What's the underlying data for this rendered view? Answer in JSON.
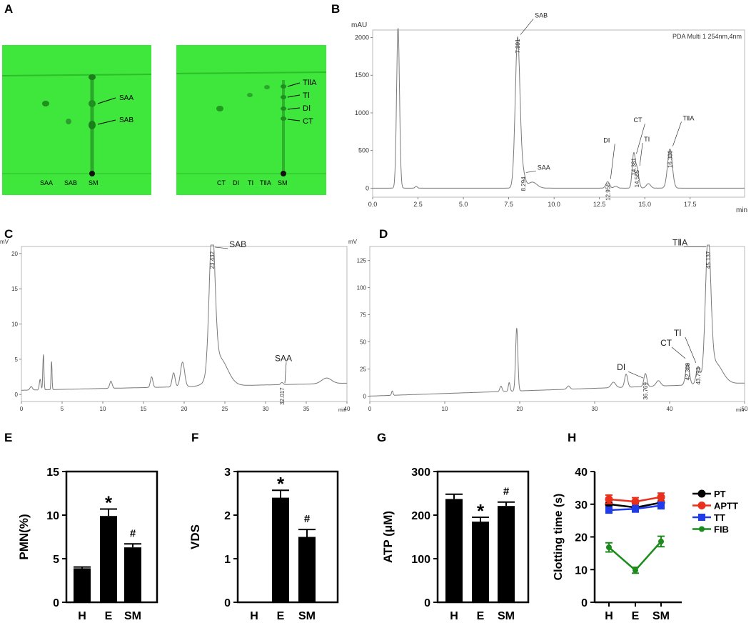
{
  "panels": {
    "A": {
      "label": "A",
      "plate_left": {
        "spots_labels": [
          "SAA",
          "SAB"
        ],
        "lane_labels": [
          "SAA",
          "SAB",
          "SM"
        ]
      },
      "plate_right": {
        "spots_labels": [
          "TⅡA",
          "TⅠ",
          "DⅠ",
          "CT"
        ],
        "lane_labels": [
          "CT",
          "DⅠ",
          "TⅠ",
          "TⅡA",
          "SM"
        ]
      },
      "plate_color": "#3ee83a"
    },
    "B": {
      "label": "B"
    },
    "C": {
      "label": "C"
    },
    "D": {
      "label": "D"
    },
    "E": {
      "label": "E"
    },
    "F": {
      "label": "F"
    },
    "G": {
      "label": "G"
    },
    "H": {
      "label": "H"
    }
  },
  "chart_data": [
    {
      "id": "B",
      "type": "line",
      "ylabel": "mAU",
      "xlabel": "min",
      "header": "PDA Multi 1 254nm,4nm",
      "xlim": [
        0,
        20.5
      ],
      "ylim": [
        -120,
        2100
      ],
      "xticks": [
        0.0,
        2.5,
        5.0,
        7.5,
        10.0,
        12.5,
        15.0,
        17.5
      ],
      "xtick_labels": [
        "0.0",
        "2.5",
        "5.0",
        "7.5",
        "10.0",
        "12.5",
        "15.0",
        "17.5"
      ],
      "yticks": [
        0,
        500,
        1000,
        1500,
        2000
      ],
      "peaks": [
        {
          "x": 1.4,
          "h": 2150,
          "w": 0.08
        },
        {
          "x": 2.4,
          "h": 25,
          "w": 0.06
        },
        {
          "x": 7.991,
          "h": 2000,
          "w": 0.13
        },
        {
          "x": 8.294,
          "h": 170,
          "w": 0.12
        },
        {
          "x": 8.8,
          "h": 80,
          "w": 0.25
        },
        {
          "x": 12.956,
          "h": 85,
          "w": 0.1
        },
        {
          "x": 13.4,
          "h": 25,
          "w": 0.1
        },
        {
          "x": 14.381,
          "h": 420,
          "w": 0.08
        },
        {
          "x": 14.565,
          "h": 260,
          "w": 0.1
        },
        {
          "x": 15.2,
          "h": 60,
          "w": 0.12
        },
        {
          "x": 16.386,
          "h": 520,
          "w": 0.13
        }
      ],
      "peak_labels": [
        {
          "rt": "7.991",
          "name": "SAB",
          "x": 7.991,
          "y": 2000
        },
        {
          "rt": "8.294",
          "name": "SAA",
          "x": 8.294,
          "y": 170
        },
        {
          "rt": "12.956",
          "name": "DⅠ",
          "x": 12.956,
          "y": 85
        },
        {
          "rt": "14.381",
          "name": "CT",
          "x": 14.381,
          "y": 420
        },
        {
          "rt": "14.565",
          "name": "TⅠ",
          "x": 14.565,
          "y": 260
        },
        {
          "rt": "16.386",
          "name": "TⅡA",
          "x": 16.386,
          "y": 520
        }
      ]
    },
    {
      "id": "C",
      "type": "line",
      "ylabel": "mV",
      "xlabel": "min",
      "xlim": [
        0,
        40
      ],
      "ylim": [
        -1,
        21
      ],
      "xticks": [
        0,
        5,
        10,
        15,
        20,
        25,
        30,
        35,
        40
      ],
      "yticks": [
        0,
        5,
        10,
        15,
        20
      ],
      "baseline_from": 0.6,
      "baseline_to": 1.6,
      "peaks": [
        {
          "x": 1.2,
          "h": 0.5,
          "w": 0.15
        },
        {
          "x": 2.3,
          "h": 1.5,
          "w": 0.1
        },
        {
          "x": 2.7,
          "h": 5.0,
          "w": 0.07
        },
        {
          "x": 3.7,
          "h": 4.0,
          "w": 0.06
        },
        {
          "x": 11.0,
          "h": 1.0,
          "w": 0.15
        },
        {
          "x": 16.0,
          "h": 1.5,
          "w": 0.15
        },
        {
          "x": 18.7,
          "h": 2.0,
          "w": 0.18
        },
        {
          "x": 19.8,
          "h": 3.5,
          "w": 0.25
        },
        {
          "x": 23.432,
          "h": 20.0,
          "w": 0.35
        },
        {
          "x": 24.3,
          "h": 4.0,
          "w": 1.0
        },
        {
          "x": 32.017,
          "h": 0.3,
          "w": 0.15
        },
        {
          "x": 37.5,
          "h": 0.8,
          "w": 0.6
        }
      ],
      "peak_labels": [
        {
          "rt": "23.432",
          "name": "SAB",
          "x": 23.432,
          "y": 20.5
        },
        {
          "rt": "32.017",
          "name": "SAA",
          "x": 32.017,
          "y": 1.2
        }
      ]
    },
    {
      "id": "D",
      "type": "line",
      "ylabel": "mV",
      "xlabel": "min",
      "xlim": [
        0,
        50
      ],
      "ylim": [
        -5,
        138
      ],
      "xticks": [
        0,
        10,
        20,
        30,
        40,
        50
      ],
      "yticks": [
        0,
        25,
        50,
        75,
        100,
        125
      ],
      "baseline_from": 0,
      "baseline_to": 12,
      "peaks": [
        {
          "x": 3.0,
          "h": 4,
          "w": 0.1
        },
        {
          "x": 17.5,
          "h": 5,
          "w": 0.15
        },
        {
          "x": 18.6,
          "h": 8,
          "w": 0.12
        },
        {
          "x": 19.6,
          "h": 58,
          "w": 0.15
        },
        {
          "x": 26.5,
          "h": 3,
          "w": 0.2
        },
        {
          "x": 32.5,
          "h": 5,
          "w": 0.3
        },
        {
          "x": 34.2,
          "h": 12,
          "w": 0.2
        },
        {
          "x": 36.769,
          "h": 12,
          "w": 0.2
        },
        {
          "x": 38.5,
          "h": 5,
          "w": 0.3
        },
        {
          "x": 42.388,
          "h": 20,
          "w": 0.25
        },
        {
          "x": 43.793,
          "h": 15,
          "w": 0.25
        },
        {
          "x": 45.137,
          "h": 125,
          "w": 0.35
        },
        {
          "x": 46.0,
          "h": 20,
          "w": 1.0
        }
      ],
      "peak_labels": [
        {
          "rt": "36.769",
          "name": "DⅠ",
          "x": 36.769,
          "y": 14
        },
        {
          "rt": "42.388",
          "name": "CT",
          "x": 42.388,
          "y": 32
        },
        {
          "rt": "43.793",
          "name": "TⅠ",
          "x": 43.793,
          "y": 28
        },
        {
          "rt": "45.137",
          "name": "TⅡA",
          "x": 45.137,
          "y": 135
        }
      ]
    },
    {
      "id": "E",
      "type": "bar",
      "ylabel": "PMN(%)",
      "categories": [
        "H",
        "E",
        "SM"
      ],
      "values": [
        3.9,
        9.9,
        6.3
      ],
      "errors": [
        0.15,
        0.8,
        0.4
      ],
      "marks": [
        "",
        "*",
        "#"
      ],
      "ylim": [
        0,
        15
      ],
      "yticks": [
        0,
        5,
        10,
        15
      ]
    },
    {
      "id": "F",
      "type": "bar",
      "ylabel": "VDS",
      "categories": [
        "H",
        "E",
        "SM"
      ],
      "values": [
        0,
        2.4,
        1.5
      ],
      "errors": [
        0,
        0.17,
        0.17
      ],
      "marks": [
        "",
        "*",
        "#"
      ],
      "ylim": [
        0,
        3
      ],
      "yticks": [
        0,
        1,
        2,
        3
      ]
    },
    {
      "id": "G",
      "type": "bar",
      "ylabel": "ATP (μM)",
      "categories": [
        "H",
        "E",
        "SM"
      ],
      "values": [
        237,
        185,
        221
      ],
      "errors": [
        11,
        10,
        9
      ],
      "marks": [
        "",
        "*",
        "#"
      ],
      "ylim": [
        0,
        300
      ],
      "yticks": [
        0,
        100,
        200,
        300
      ]
    },
    {
      "id": "H",
      "type": "line",
      "ylabel": "Clotting time (s)",
      "categories": [
        "H",
        "E",
        "SM"
      ],
      "ylim": [
        0,
        40
      ],
      "yticks": [
        0,
        10,
        20,
        30,
        40
      ],
      "series": [
        {
          "name": "PT",
          "color": "#000000",
          "values": [
            30.0,
            29.0,
            30.5
          ],
          "errors": [
            1.2,
            1.2,
            1.2
          ]
        },
        {
          "name": "APTT",
          "color": "#e8301c",
          "values": [
            31.5,
            30.8,
            32.2
          ],
          "errors": [
            1.3,
            1.2,
            1.2
          ]
        },
        {
          "name": "TT",
          "color": "#1f3bea",
          "values": [
            28.2,
            28.6,
            29.6
          ],
          "errors": [
            0.9,
            1.0,
            1.0
          ]
        },
        {
          "name": "FIB",
          "color": "#1b8c1b",
          "values": [
            16.8,
            9.8,
            18.6
          ],
          "errors": [
            1.4,
            0.9,
            1.6
          ]
        }
      ]
    }
  ]
}
